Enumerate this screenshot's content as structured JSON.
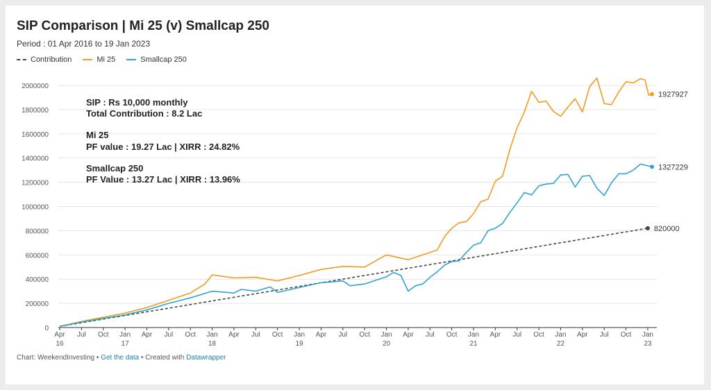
{
  "header": {
    "title": "SIP Comparison | Mi 25 (v) Smallcap 250",
    "subtitle": "Period : 01 Apr 2016 to 19 Jan 2023"
  },
  "footer": {
    "prefix": "Chart: WeekendInvesting • ",
    "get_data": "Get the data",
    "middle": " • Created with ",
    "datawrapper": "Datawrapper"
  },
  "colors": {
    "contribution": "#444444",
    "mi25": "#f39a1e",
    "smallcap": "#2fa4cd",
    "grid": "#e3e3e3"
  },
  "chart_data": {
    "type": "line",
    "title": "SIP Comparison | Mi 25 (v) Smallcap 250",
    "subtitle": "Period : 01 Apr 2016 to 19 Jan 2023",
    "ylim": [
      0,
      2000000
    ],
    "yticks": [
      0,
      200000,
      400000,
      600000,
      800000,
      1000000,
      1200000,
      1400000,
      1600000,
      1800000,
      2000000
    ],
    "ytick_labels": [
      "0",
      "200000",
      "400000",
      "600000",
      "800000",
      "1000000",
      "1200000",
      "1400000",
      "1600000",
      "1800000",
      "2000000"
    ],
    "xlim": [
      "2016-04",
      "2023-01"
    ],
    "xticks": [
      {
        "at": "2016-04",
        "label": "Apr",
        "year": "16"
      },
      {
        "at": "2016-07",
        "label": "Jul",
        "year": ""
      },
      {
        "at": "2016-10",
        "label": "Oct",
        "year": ""
      },
      {
        "at": "2017-01",
        "label": "Jan",
        "year": "17"
      },
      {
        "at": "2017-04",
        "label": "Apr",
        "year": ""
      },
      {
        "at": "2017-07",
        "label": "Jul",
        "year": ""
      },
      {
        "at": "2017-10",
        "label": "Oct",
        "year": ""
      },
      {
        "at": "2018-01",
        "label": "Jan",
        "year": "18"
      },
      {
        "at": "2018-04",
        "label": "Apr",
        "year": ""
      },
      {
        "at": "2018-07",
        "label": "Jul",
        "year": ""
      },
      {
        "at": "2018-10",
        "label": "Oct",
        "year": ""
      },
      {
        "at": "2019-01",
        "label": "Jan",
        "year": "19"
      },
      {
        "at": "2019-04",
        "label": "Apr",
        "year": ""
      },
      {
        "at": "2019-07",
        "label": "Jul",
        "year": ""
      },
      {
        "at": "2019-10",
        "label": "Oct",
        "year": ""
      },
      {
        "at": "2020-01",
        "label": "Jan",
        "year": "20"
      },
      {
        "at": "2020-04",
        "label": "Apr",
        "year": ""
      },
      {
        "at": "2020-07",
        "label": "Jul",
        "year": ""
      },
      {
        "at": "2020-10",
        "label": "Oct",
        "year": ""
      },
      {
        "at": "2021-01",
        "label": "Jan",
        "year": "21"
      },
      {
        "at": "2021-04",
        "label": "Apr",
        "year": ""
      },
      {
        "at": "2021-07",
        "label": "Jul",
        "year": ""
      },
      {
        "at": "2021-10",
        "label": "Oct",
        "year": ""
      },
      {
        "at": "2022-01",
        "label": "Jan",
        "year": "22"
      },
      {
        "at": "2022-04",
        "label": "Apr",
        "year": ""
      },
      {
        "at": "2022-07",
        "label": "Jul",
        "year": ""
      },
      {
        "at": "2022-10",
        "label": "Oct",
        "year": ""
      },
      {
        "at": "2023-01",
        "label": "Jan",
        "year": "23"
      }
    ],
    "legend": "top-left",
    "grid": true,
    "annotations": [
      [
        "SIP : Rs 10,000 monthly",
        "Total Contribution : 8.2 Lac"
      ],
      [
        "Mi 25",
        "PF value : 19.27 Lac | XIRR : 24.82%"
      ],
      [
        "Smallcap 250",
        "PF Value : 13.27 Lac | XIRR : 13.96%"
      ]
    ],
    "series": [
      {
        "name": "Contribution",
        "style": "dashed",
        "end_label": "820000",
        "points": [
          [
            "2016-04",
            10000
          ],
          [
            "2023-01",
            820000
          ]
        ]
      },
      {
        "name": "Mi 25",
        "style": "solid",
        "end_label": "1927927",
        "points": [
          [
            "2016-04",
            10000
          ],
          [
            "2016-07",
            50000
          ],
          [
            "2016-10",
            85000
          ],
          [
            "2017-01",
            120000
          ],
          [
            "2017-04",
            165000
          ],
          [
            "2017-07",
            225000
          ],
          [
            "2017-10",
            285000
          ],
          [
            "2017-12",
            360000
          ],
          [
            "2018-01",
            435000
          ],
          [
            "2018-04",
            410000
          ],
          [
            "2018-07",
            415000
          ],
          [
            "2018-10",
            385000
          ],
          [
            "2019-01",
            430000
          ],
          [
            "2019-04",
            480000
          ],
          [
            "2019-07",
            505000
          ],
          [
            "2019-10",
            500000
          ],
          [
            "2020-01",
            600000
          ],
          [
            "2020-04",
            560000
          ],
          [
            "2020-07",
            620000
          ],
          [
            "2020-08",
            640000
          ],
          [
            "2020-09",
            750000
          ],
          [
            "2020-10",
            820000
          ],
          [
            "2020-11",
            865000
          ],
          [
            "2020-12",
            875000
          ],
          [
            "2021-01",
            940000
          ],
          [
            "2021-02",
            1040000
          ],
          [
            "2021-03",
            1060000
          ],
          [
            "2021-04",
            1210000
          ],
          [
            "2021-05",
            1250000
          ],
          [
            "2021-06",
            1470000
          ],
          [
            "2021-07",
            1650000
          ],
          [
            "2021-08",
            1780000
          ],
          [
            "2021-09",
            1950000
          ],
          [
            "2021-10",
            1860000
          ],
          [
            "2021-11",
            1870000
          ],
          [
            "2021-12",
            1785000
          ],
          [
            "2022-01",
            1745000
          ],
          [
            "2022-02",
            1820000
          ],
          [
            "2022-03",
            1890000
          ],
          [
            "2022-04",
            1780000
          ],
          [
            "2022-05",
            1990000
          ],
          [
            "2022-06",
            2060000
          ],
          [
            "2022-07",
            1850000
          ],
          [
            "2022-08",
            1840000
          ],
          [
            "2022-09",
            1945000
          ],
          [
            "2022-10",
            2030000
          ],
          [
            "2022-11",
            2020000
          ],
          [
            "2022-12",
            2055000
          ],
          [
            "2022-12-20",
            2045000
          ],
          [
            "2023-01-05",
            1918000
          ],
          [
            "2023-01-19",
            1927927
          ]
        ]
      },
      {
        "name": "Smallcap 250",
        "style": "solid",
        "end_label": "1327229",
        "points": [
          [
            "2016-04",
            10000
          ],
          [
            "2016-07",
            45000
          ],
          [
            "2016-10",
            75000
          ],
          [
            "2017-01",
            105000
          ],
          [
            "2017-04",
            145000
          ],
          [
            "2017-07",
            200000
          ],
          [
            "2017-10",
            245000
          ],
          [
            "2018-01",
            300000
          ],
          [
            "2018-04",
            285000
          ],
          [
            "2018-05",
            315000
          ],
          [
            "2018-07",
            300000
          ],
          [
            "2018-09",
            335000
          ],
          [
            "2018-10",
            290000
          ],
          [
            "2019-01",
            330000
          ],
          [
            "2019-04",
            370000
          ],
          [
            "2019-07",
            385000
          ],
          [
            "2019-08",
            345000
          ],
          [
            "2019-10",
            360000
          ],
          [
            "2020-01",
            420000
          ],
          [
            "2020-02",
            455000
          ],
          [
            "2020-03",
            430000
          ],
          [
            "2020-04",
            300000
          ],
          [
            "2020-05",
            345000
          ],
          [
            "2020-06",
            360000
          ],
          [
            "2020-07",
            415000
          ],
          [
            "2020-08",
            460000
          ],
          [
            "2020-09",
            515000
          ],
          [
            "2020-10",
            545000
          ],
          [
            "2020-11",
            550000
          ],
          [
            "2020-12",
            620000
          ],
          [
            "2021-01",
            680000
          ],
          [
            "2021-02",
            700000
          ],
          [
            "2021-03",
            800000
          ],
          [
            "2021-04",
            820000
          ],
          [
            "2021-05",
            860000
          ],
          [
            "2021-06",
            950000
          ],
          [
            "2021-07",
            1030000
          ],
          [
            "2021-08",
            1115000
          ],
          [
            "2021-09",
            1095000
          ],
          [
            "2021-10",
            1170000
          ],
          [
            "2021-11",
            1185000
          ],
          [
            "2021-12",
            1190000
          ],
          [
            "2022-01",
            1260000
          ],
          [
            "2022-02",
            1265000
          ],
          [
            "2022-03",
            1160000
          ],
          [
            "2022-04",
            1250000
          ],
          [
            "2022-05",
            1255000
          ],
          [
            "2022-06",
            1150000
          ],
          [
            "2022-07",
            1090000
          ],
          [
            "2022-08",
            1195000
          ],
          [
            "2022-09",
            1270000
          ],
          [
            "2022-10",
            1270000
          ],
          [
            "2022-11",
            1300000
          ],
          [
            "2022-12",
            1350000
          ],
          [
            "2023-01-19",
            1327229
          ]
        ]
      }
    ]
  }
}
